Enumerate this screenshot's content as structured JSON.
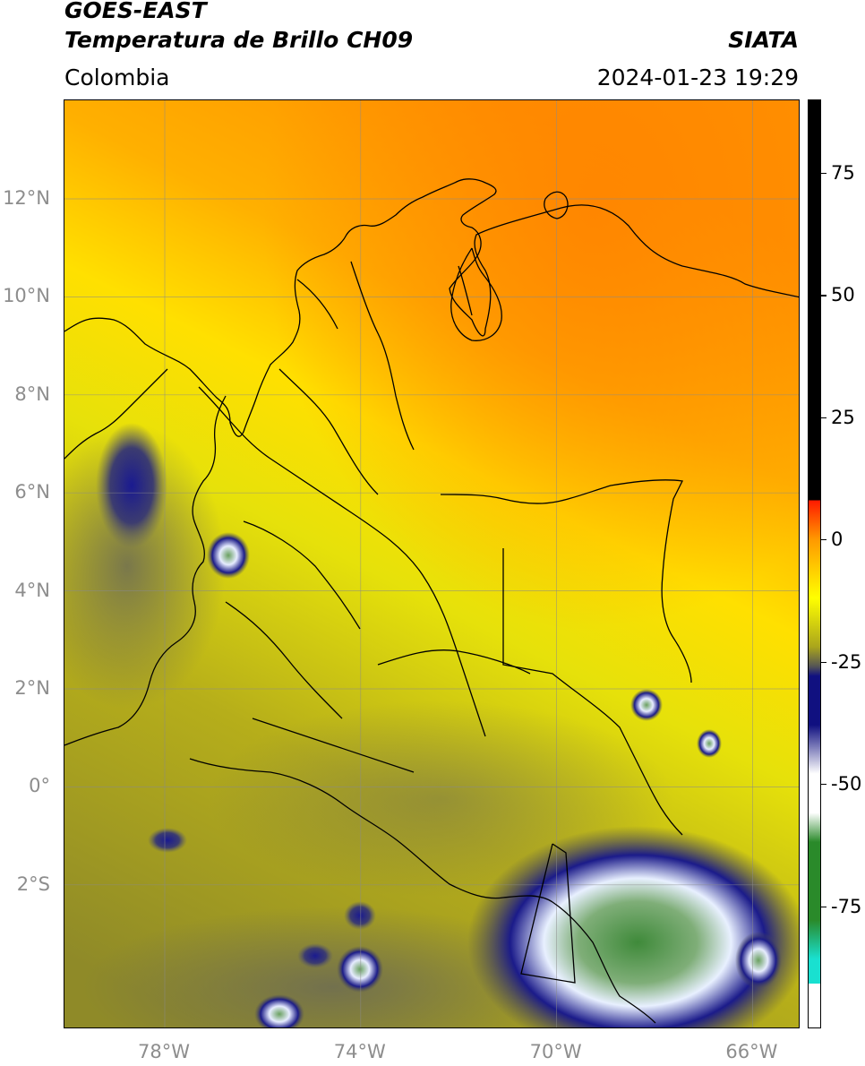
{
  "header": {
    "title_line1": "GOES-EAST",
    "title_line2": "Temperatura de Brillo CH09",
    "organization": "SIATA",
    "region": "Colombia",
    "timestamp": "2024-01-23 19:29"
  },
  "map": {
    "lat_ticks": [
      {
        "label": "12°N",
        "value": 12
      },
      {
        "label": "10°N",
        "value": 10
      },
      {
        "label": "8°N",
        "value": 8
      },
      {
        "label": "6°N",
        "value": 6
      },
      {
        "label": "4°N",
        "value": 4
      },
      {
        "label": "2°N",
        "value": 2
      },
      {
        "label": "0°",
        "value": 0
      },
      {
        "label": "2°S",
        "value": -2
      }
    ],
    "lon_ticks": [
      {
        "label": "78°W",
        "value": -78
      },
      {
        "label": "74°W",
        "value": -74
      },
      {
        "label": "70°W",
        "value": -70
      },
      {
        "label": "66°W",
        "value": -66
      }
    ]
  },
  "colorbar": {
    "ticks": [
      {
        "label": "75",
        "value": 75
      },
      {
        "label": "50",
        "value": 50
      },
      {
        "label": "25",
        "value": 25
      },
      {
        "label": "0",
        "value": 0
      },
      {
        "label": "-25",
        "value": -25
      },
      {
        "label": "-50",
        "value": -50
      },
      {
        "label": "-75",
        "value": -75
      }
    ],
    "colors": {
      "black": "#000000",
      "red": "#ff1a00",
      "orange": "#ff9900",
      "yellow": "#ffff00",
      "olive": "#aaa51c",
      "gray": "#555555",
      "navy": "#101080",
      "white": "#ffffff",
      "green": "#2a8a2a",
      "cyan": "#19e0d0"
    }
  }
}
